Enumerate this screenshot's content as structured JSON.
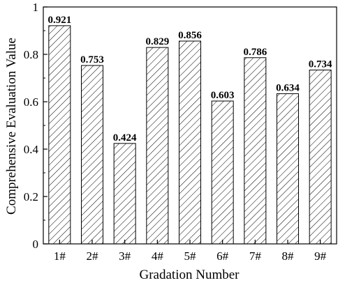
{
  "chart_data": {
    "type": "bar",
    "title": "",
    "xlabel": "Gradation Number",
    "ylabel": "Comprehensive Evaluation Value",
    "categories": [
      "1#",
      "2#",
      "3#",
      "4#",
      "5#",
      "6#",
      "7#",
      "8#",
      "9#"
    ],
    "values": [
      0.921,
      0.753,
      0.424,
      0.829,
      0.856,
      0.603,
      0.786,
      0.634,
      0.734
    ],
    "data_labels": [
      "0.921",
      "0.753",
      "0.424",
      "0.829",
      "0.856",
      "0.603",
      "0.786",
      "0.634",
      "0.734"
    ],
    "ylim": [
      0,
      1
    ],
    "yticks": [
      "0",
      "0.2",
      "0.4",
      "0.6",
      "0.8",
      "1"
    ],
    "ytick_values": [
      0,
      0.2,
      0.4,
      0.6,
      0.8,
      1
    ],
    "bar_fill": "hatched",
    "grid": false,
    "legend": "none"
  }
}
